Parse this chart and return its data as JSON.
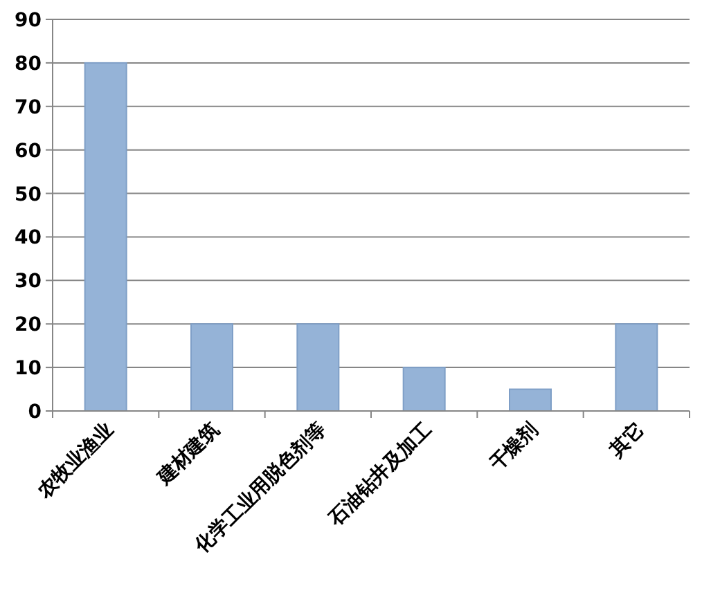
{
  "chart_data": {
    "type": "bar",
    "categories": [
      "农牧业渔业",
      "建材建筑",
      "化学工业用脱色剂等",
      "石油钻井及加工",
      "干燥剂",
      "其它"
    ],
    "values": [
      80,
      20,
      20,
      10,
      5,
      20
    ],
    "color": "#95b3d7",
    "ylim": [
      0,
      90
    ],
    "yticks": [
      0,
      10,
      20,
      30,
      40,
      50,
      60,
      70,
      80,
      90
    ],
    "grid": "y"
  }
}
